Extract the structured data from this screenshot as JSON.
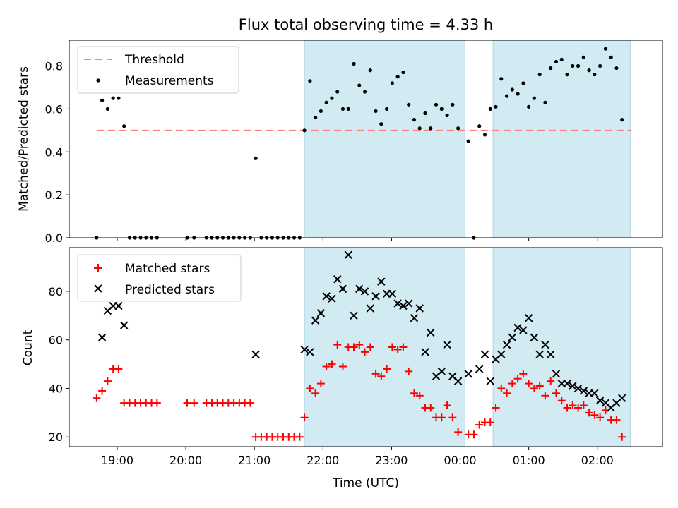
{
  "chart_data": [
    {
      "type": "scatter",
      "title": "Flux total observing time = 4.33 h",
      "xlabel": "",
      "ylabel": "Matched/Predicted stars",
      "ylim": [
        0.0,
        0.92
      ],
      "yticks": [
        0.0,
        0.2,
        0.4,
        0.6,
        0.8
      ],
      "ytick_labels": [
        "0.0",
        "0.2",
        "0.4",
        "0.6",
        "0.8"
      ],
      "grid": false,
      "legend_position": "upper-left",
      "threshold": {
        "name": "Threshold",
        "value": 0.5,
        "x_range": [
          18.7,
          26.5
        ],
        "color": "#ff7f7f",
        "style": "dashed"
      },
      "shaded_intervals": [
        [
          21.73,
          24.07
        ],
        [
          24.48,
          26.48
        ]
      ],
      "shade_color": "#add8e6",
      "series": [
        {
          "name": "Measurements",
          "marker": "dot",
          "color": "#000000",
          "points": [
            [
              18.7,
              0.0
            ],
            [
              18.78,
              0.64
            ],
            [
              18.86,
              0.6
            ],
            [
              18.94,
              0.65
            ],
            [
              19.02,
              0.65
            ],
            [
              19.1,
              0.52
            ],
            [
              19.18,
              0.0
            ],
            [
              19.26,
              0.0
            ],
            [
              19.34,
              0.0
            ],
            [
              19.42,
              0.0
            ],
            [
              19.5,
              0.0
            ],
            [
              19.58,
              0.0
            ],
            [
              20.02,
              0.0
            ],
            [
              20.12,
              0.0
            ],
            [
              20.3,
              0.0
            ],
            [
              20.38,
              0.0
            ],
            [
              20.46,
              0.0
            ],
            [
              20.54,
              0.0
            ],
            [
              20.62,
              0.0
            ],
            [
              20.7,
              0.0
            ],
            [
              20.78,
              0.0
            ],
            [
              20.86,
              0.0
            ],
            [
              20.94,
              0.0
            ],
            [
              21.02,
              0.37
            ],
            [
              21.1,
              0.0
            ],
            [
              21.18,
              0.0
            ],
            [
              21.26,
              0.0
            ],
            [
              21.34,
              0.0
            ],
            [
              21.42,
              0.0
            ],
            [
              21.5,
              0.0
            ],
            [
              21.58,
              0.0
            ],
            [
              21.66,
              0.0
            ],
            [
              21.73,
              0.5
            ],
            [
              21.81,
              0.73
            ],
            [
              21.89,
              0.56
            ],
            [
              21.97,
              0.59
            ],
            [
              22.05,
              0.63
            ],
            [
              22.13,
              0.65
            ],
            [
              22.21,
              0.68
            ],
            [
              22.29,
              0.6
            ],
            [
              22.37,
              0.6
            ],
            [
              22.45,
              0.81
            ],
            [
              22.53,
              0.71
            ],
            [
              22.61,
              0.68
            ],
            [
              22.69,
              0.78
            ],
            [
              22.77,
              0.59
            ],
            [
              22.85,
              0.53
            ],
            [
              22.93,
              0.6
            ],
            [
              23.01,
              0.72
            ],
            [
              23.09,
              0.75
            ],
            [
              23.17,
              0.77
            ],
            [
              23.25,
              0.62
            ],
            [
              23.33,
              0.55
            ],
            [
              23.41,
              0.51
            ],
            [
              23.49,
              0.58
            ],
            [
              23.57,
              0.51
            ],
            [
              23.65,
              0.62
            ],
            [
              23.73,
              0.6
            ],
            [
              23.81,
              0.57
            ],
            [
              23.89,
              0.62
            ],
            [
              23.97,
              0.51
            ],
            [
              24.12,
              0.45
            ],
            [
              24.2,
              0.0
            ],
            [
              24.28,
              0.52
            ],
            [
              24.36,
              0.48
            ],
            [
              24.44,
              0.6
            ],
            [
              24.52,
              0.61
            ],
            [
              24.6,
              0.74
            ],
            [
              24.68,
              0.66
            ],
            [
              24.76,
              0.69
            ],
            [
              24.84,
              0.67
            ],
            [
              24.92,
              0.72
            ],
            [
              25.0,
              0.61
            ],
            [
              25.08,
              0.65
            ],
            [
              25.16,
              0.76
            ],
            [
              25.24,
              0.63
            ],
            [
              25.32,
              0.79
            ],
            [
              25.4,
              0.82
            ],
            [
              25.48,
              0.83
            ],
            [
              25.56,
              0.76
            ],
            [
              25.64,
              0.8
            ],
            [
              25.72,
              0.8
            ],
            [
              25.8,
              0.84
            ],
            [
              25.88,
              0.78
            ],
            [
              25.96,
              0.76
            ],
            [
              26.04,
              0.8
            ],
            [
              26.12,
              0.88
            ],
            [
              26.2,
              0.84
            ],
            [
              26.28,
              0.79
            ],
            [
              26.36,
              0.55
            ]
          ]
        }
      ]
    },
    {
      "type": "scatter",
      "title": "",
      "xlabel": "Time (UTC)",
      "ylabel": "Count",
      "ylim": [
        16,
        98
      ],
      "yticks": [
        20,
        40,
        60,
        80
      ],
      "ytick_labels": [
        "20",
        "40",
        "60",
        "80"
      ],
      "xlim": [
        18.3,
        26.95
      ],
      "xticks": [
        19,
        20,
        21,
        22,
        23,
        24,
        25,
        26
      ],
      "xtick_labels": [
        "19:00",
        "20:00",
        "21:00",
        "22:00",
        "23:00",
        "00:00",
        "01:00",
        "02:00"
      ],
      "grid": false,
      "legend_position": "upper-left",
      "shaded_intervals": [
        [
          21.73,
          24.07
        ],
        [
          24.48,
          26.48
        ]
      ],
      "shade_color": "#add8e6",
      "series": [
        {
          "name": "Matched stars",
          "marker": "plus",
          "color": "#ff0000",
          "points": [
            [
              18.7,
              36
            ],
            [
              18.78,
              39
            ],
            [
              18.86,
              43
            ],
            [
              18.94,
              48
            ],
            [
              19.02,
              48
            ],
            [
              19.1,
              34
            ],
            [
              19.18,
              34
            ],
            [
              19.26,
              34
            ],
            [
              19.34,
              34
            ],
            [
              19.42,
              34
            ],
            [
              19.5,
              34
            ],
            [
              19.58,
              34
            ],
            [
              20.02,
              34
            ],
            [
              20.12,
              34
            ],
            [
              20.3,
              34
            ],
            [
              20.38,
              34
            ],
            [
              20.46,
              34
            ],
            [
              20.54,
              34
            ],
            [
              20.62,
              34
            ],
            [
              20.7,
              34
            ],
            [
              20.78,
              34
            ],
            [
              20.86,
              34
            ],
            [
              20.94,
              34
            ],
            [
              21.02,
              20
            ],
            [
              21.1,
              20
            ],
            [
              21.18,
              20
            ],
            [
              21.26,
              20
            ],
            [
              21.34,
              20
            ],
            [
              21.42,
              20
            ],
            [
              21.5,
              20
            ],
            [
              21.58,
              20
            ],
            [
              21.66,
              20
            ],
            [
              21.73,
              28
            ],
            [
              21.81,
              40
            ],
            [
              21.89,
              38
            ],
            [
              21.97,
              42
            ],
            [
              22.05,
              49
            ],
            [
              22.13,
              50
            ],
            [
              22.21,
              58
            ],
            [
              22.29,
              49
            ],
            [
              22.37,
              57
            ],
            [
              22.45,
              57
            ],
            [
              22.53,
              58
            ],
            [
              22.61,
              55
            ],
            [
              22.69,
              57
            ],
            [
              22.77,
              46
            ],
            [
              22.85,
              45
            ],
            [
              22.93,
              48
            ],
            [
              23.01,
              57
            ],
            [
              23.09,
              56
            ],
            [
              23.17,
              57
            ],
            [
              23.25,
              47
            ],
            [
              23.33,
              38
            ],
            [
              23.41,
              37
            ],
            [
              23.49,
              32
            ],
            [
              23.57,
              32
            ],
            [
              23.65,
              28
            ],
            [
              23.73,
              28
            ],
            [
              23.81,
              33
            ],
            [
              23.89,
              28
            ],
            [
              23.97,
              22
            ],
            [
              24.12,
              21
            ],
            [
              24.2,
              21
            ],
            [
              24.28,
              25
            ],
            [
              24.36,
              26
            ],
            [
              24.44,
              26
            ],
            [
              24.52,
              32
            ],
            [
              24.6,
              40
            ],
            [
              24.68,
              38
            ],
            [
              24.76,
              42
            ],
            [
              24.84,
              44
            ],
            [
              24.92,
              46
            ],
            [
              25.0,
              42
            ],
            [
              25.08,
              40
            ],
            [
              25.16,
              41
            ],
            [
              25.24,
              37
            ],
            [
              25.32,
              43
            ],
            [
              25.4,
              38
            ],
            [
              25.48,
              35
            ],
            [
              25.56,
              32
            ],
            [
              25.64,
              33
            ],
            [
              25.72,
              32
            ],
            [
              25.8,
              33
            ],
            [
              25.88,
              30
            ],
            [
              25.96,
              29
            ],
            [
              26.04,
              28
            ],
            [
              26.12,
              31
            ],
            [
              26.2,
              27
            ],
            [
              26.28,
              27
            ],
            [
              26.36,
              20
            ]
          ]
        },
        {
          "name": "Predicted stars",
          "marker": "x",
          "color": "#000000",
          "points": [
            [
              18.78,
              61
            ],
            [
              18.86,
              72
            ],
            [
              18.94,
              74
            ],
            [
              19.02,
              74
            ],
            [
              19.1,
              66
            ],
            [
              21.02,
              54
            ],
            [
              21.73,
              56
            ],
            [
              21.81,
              55
            ],
            [
              21.89,
              68
            ],
            [
              21.97,
              71
            ],
            [
              22.05,
              78
            ],
            [
              22.13,
              77
            ],
            [
              22.21,
              85
            ],
            [
              22.29,
              81
            ],
            [
              22.37,
              95
            ],
            [
              22.45,
              70
            ],
            [
              22.53,
              81
            ],
            [
              22.61,
              80
            ],
            [
              22.69,
              73
            ],
            [
              22.77,
              78
            ],
            [
              22.85,
              84
            ],
            [
              22.93,
              79
            ],
            [
              23.01,
              79
            ],
            [
              23.09,
              75
            ],
            [
              23.17,
              74
            ],
            [
              23.25,
              75
            ],
            [
              23.33,
              69
            ],
            [
              23.41,
              73
            ],
            [
              23.49,
              55
            ],
            [
              23.57,
              63
            ],
            [
              23.65,
              45
            ],
            [
              23.73,
              47
            ],
            [
              23.81,
              58
            ],
            [
              23.89,
              45
            ],
            [
              23.97,
              43
            ],
            [
              24.12,
              46
            ],
            [
              24.28,
              48
            ],
            [
              24.36,
              54
            ],
            [
              24.44,
              43
            ],
            [
              24.52,
              52
            ],
            [
              24.6,
              54
            ],
            [
              24.68,
              58
            ],
            [
              24.76,
              61
            ],
            [
              24.84,
              65
            ],
            [
              24.92,
              64
            ],
            [
              25.0,
              69
            ],
            [
              25.08,
              61
            ],
            [
              25.16,
              54
            ],
            [
              25.24,
              58
            ],
            [
              25.32,
              54
            ],
            [
              25.4,
              46
            ],
            [
              25.48,
              42
            ],
            [
              25.56,
              42
            ],
            [
              25.64,
              41
            ],
            [
              25.72,
              40
            ],
            [
              25.8,
              39
            ],
            [
              25.88,
              38
            ],
            [
              25.96,
              38
            ],
            [
              26.04,
              35
            ],
            [
              26.12,
              34
            ],
            [
              26.2,
              32
            ],
            [
              26.28,
              34
            ],
            [
              26.36,
              36
            ]
          ]
        }
      ]
    }
  ]
}
